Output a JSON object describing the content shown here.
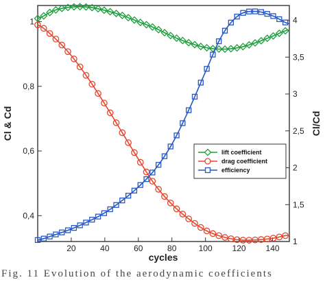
{
  "chart_data": {
    "type": "line",
    "xlabel": "cycles",
    "ylabel_left": "Cl & Cd",
    "ylabel_right": "Cl/Cd",
    "xlim": [
      0,
      150
    ],
    "ylim_left": [
      0.32,
      1.05
    ],
    "ylim_right": [
      1,
      4.2
    ],
    "x_ticks": [
      "20",
      "40",
      "60",
      "80",
      "100",
      "120",
      "140"
    ],
    "y_ticks_left": [
      "0,4",
      "0,6",
      "0,8",
      "1"
    ],
    "y_ticks_right": [
      "1",
      "1,5",
      "2",
      "2,5",
      "3",
      "3,5",
      "4"
    ],
    "grid": false,
    "legend_position": "right-middle",
    "series": [
      {
        "name": "lift coefficient",
        "color": "#1a9f3a",
        "marker": "diamond",
        "axis": "left",
        "x": [
          0,
          10,
          20,
          30,
          40,
          50,
          60,
          70,
          80,
          90,
          100,
          110,
          120,
          130,
          140,
          150
        ],
        "values": [
          1.01,
          1.035,
          1.045,
          1.045,
          1.035,
          1.02,
          1.0,
          0.98,
          0.955,
          0.935,
          0.92,
          0.915,
          0.92,
          0.935,
          0.955,
          0.975
        ]
      },
      {
        "name": "drag coefficient",
        "color": "#e8442a",
        "marker": "circle",
        "axis": "left",
        "x": [
          0,
          10,
          20,
          30,
          40,
          50,
          60,
          70,
          80,
          90,
          100,
          110,
          120,
          130,
          140,
          150
        ],
        "values": [
          0.99,
          0.95,
          0.895,
          0.825,
          0.745,
          0.66,
          0.575,
          0.495,
          0.435,
          0.39,
          0.355,
          0.335,
          0.325,
          0.325,
          0.33,
          0.34
        ]
      },
      {
        "name": "efficiency",
        "color": "#2456c8",
        "marker": "square",
        "axis": "right",
        "x": [
          0,
          10,
          20,
          30,
          40,
          50,
          60,
          70,
          80,
          90,
          100,
          110,
          120,
          130,
          140,
          150
        ],
        "values": [
          1.02,
          1.09,
          1.17,
          1.27,
          1.39,
          1.55,
          1.74,
          1.98,
          2.32,
          2.78,
          3.3,
          3.8,
          4.07,
          4.12,
          4.06,
          3.95
        ]
      }
    ]
  },
  "caption": "Fig. 11 Evolution of the aerodynamic coefficients"
}
